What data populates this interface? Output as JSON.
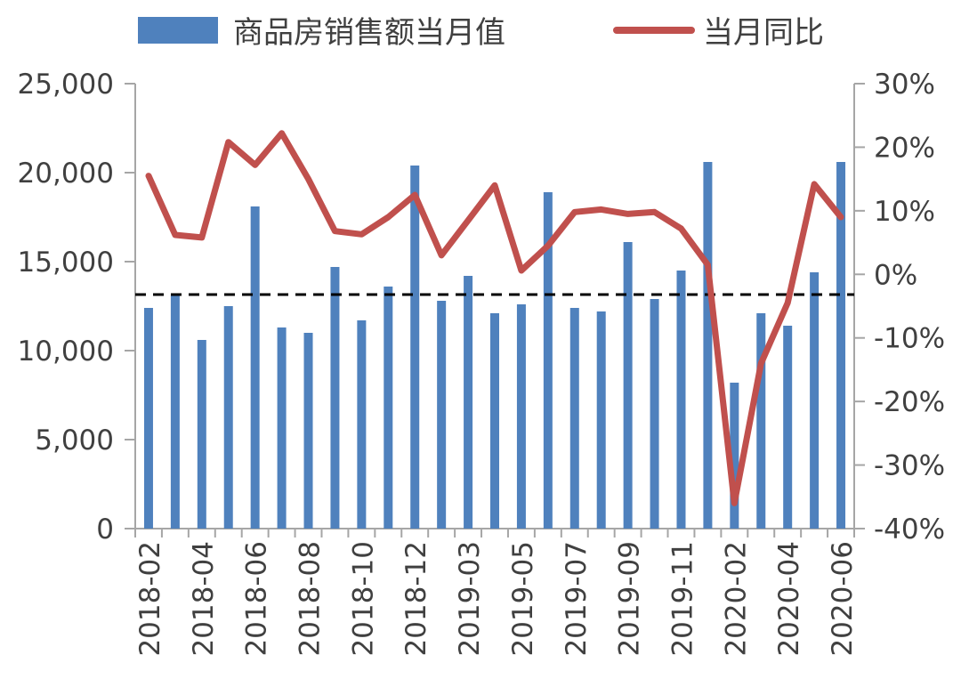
{
  "chart_data": {
    "type": "bar+line",
    "x": [
      "2018-02",
      "2018-03",
      "2018-04",
      "2018-05",
      "2018-06",
      "2018-07",
      "2018-08",
      "2018-09",
      "2018-10",
      "2018-11",
      "2018-12",
      "2019-01",
      "2019-03",
      "2019-04",
      "2019-05",
      "2019-06",
      "2019-07",
      "2019-08",
      "2019-09",
      "2019-10",
      "2019-11",
      "2019-12",
      "2020-02",
      "2020-03",
      "2020-04",
      "2020-05",
      "2020-06"
    ],
    "x_tick_labels": [
      "2018-02",
      "2018-04",
      "2018-06",
      "2018-08",
      "2018-10",
      "2018-12",
      "2019-03",
      "2019-05",
      "2019-07",
      "2019-09",
      "2019-11",
      "2020-02",
      "2020-04",
      "2020-06"
    ],
    "series": [
      {
        "name": "商品房销售额当月值",
        "type": "bar",
        "axis": "left",
        "color": "#4F81BD",
        "values": [
          12400,
          13100,
          10600,
          12500,
          18100,
          11300,
          11000,
          14700,
          11700,
          13600,
          20400,
          12800,
          14200,
          12100,
          12600,
          18900,
          12400,
          12200,
          16100,
          12900,
          14500,
          20600,
          8200,
          12100,
          11400,
          14400,
          20600
        ]
      },
      {
        "name": "当月同比",
        "type": "line",
        "axis": "right",
        "color": "#C0504D",
        "values": [
          15.5,
          6.2,
          5.8,
          20.8,
          17.2,
          22.2,
          15.0,
          6.8,
          6.3,
          9.0,
          12.5,
          3.0,
          8.5,
          14.0,
          0.6,
          4.5,
          9.8,
          10.2,
          9.5,
          9.8,
          7.2,
          1.5,
          -36.0,
          -14.0,
          -4.5,
          14.2,
          9.0
        ]
      }
    ],
    "y_left": {
      "min": 0,
      "max": 25000,
      "ticks": [
        "0",
        "5,000",
        "10,000",
        "15,000",
        "20,000",
        "25,000"
      ]
    },
    "y_right": {
      "min": -40,
      "max": 30,
      "ticks": [
        "-40%",
        "-30%",
        "-20%",
        "-10%",
        "0%",
        "10%",
        "20%",
        "30%"
      ]
    },
    "reference_line": {
      "axis": "left",
      "value": 13150,
      "style": "dashed",
      "color": "#000000"
    },
    "legend": {
      "position": "top"
    },
    "grid": false
  }
}
